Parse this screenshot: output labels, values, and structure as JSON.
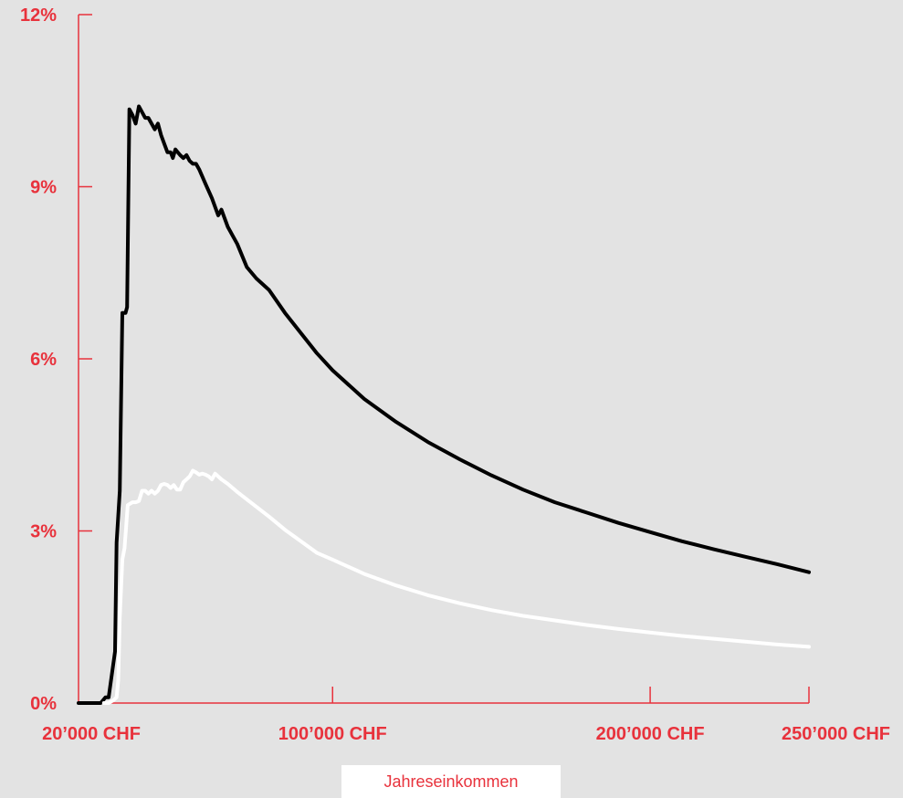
{
  "colors": {
    "background": "#e3e3e3",
    "axis": "#e8323c",
    "series1": "#000000",
    "series2": "#ffffff"
  },
  "chart_data": {
    "type": "line",
    "title": "",
    "xlabel": "Jahreseinkommen",
    "ylabel": "",
    "xlim": [
      20000,
      250000
    ],
    "ylim": [
      0,
      12
    ],
    "grid": false,
    "y_ticks": [
      {
        "value": 0,
        "label": "0%"
      },
      {
        "value": 3,
        "label": "3%"
      },
      {
        "value": 6,
        "label": "6%"
      },
      {
        "value": 9,
        "label": "9%"
      },
      {
        "value": 12,
        "label": "12%"
      }
    ],
    "x_ticks": [
      {
        "value": 20000,
        "label": "20’000 CHF"
      },
      {
        "value": 100000,
        "label": "100’000 CHF"
      },
      {
        "value": 200000,
        "label": "200’000 CHF"
      },
      {
        "value": 250000,
        "label": "250’000 CHF"
      }
    ],
    "series": [
      {
        "color": "#000000",
        "points": [
          [
            20000,
            0
          ],
          [
            27000,
            0
          ],
          [
            28500,
            0.1
          ],
          [
            29500,
            0.1
          ],
          [
            30500,
            0.5
          ],
          [
            31500,
            0.9
          ],
          [
            32000,
            2.8
          ],
          [
            33000,
            3.7
          ],
          [
            33800,
            6.8
          ],
          [
            34800,
            6.8
          ],
          [
            35300,
            6.9
          ],
          [
            36000,
            10.35
          ],
          [
            37000,
            10.25
          ],
          [
            38000,
            10.1
          ],
          [
            39000,
            10.4
          ],
          [
            40000,
            10.3
          ],
          [
            41000,
            10.2
          ],
          [
            42000,
            10.2
          ],
          [
            43000,
            10.1
          ],
          [
            44000,
            10.0
          ],
          [
            45000,
            10.1
          ],
          [
            46000,
            9.9
          ],
          [
            47000,
            9.75
          ],
          [
            48000,
            9.6
          ],
          [
            49000,
            9.6
          ],
          [
            49700,
            9.5
          ],
          [
            50500,
            9.65
          ],
          [
            52000,
            9.55
          ],
          [
            53000,
            9.5
          ],
          [
            54000,
            9.55
          ],
          [
            55000,
            9.45
          ],
          [
            56000,
            9.4
          ],
          [
            57000,
            9.4
          ],
          [
            58000,
            9.3
          ],
          [
            60000,
            9.05
          ],
          [
            62000,
            8.8
          ],
          [
            64000,
            8.5
          ],
          [
            65000,
            8.6
          ],
          [
            67000,
            8.3
          ],
          [
            70000,
            8.0
          ],
          [
            73000,
            7.6
          ],
          [
            76000,
            7.4
          ],
          [
            80000,
            7.2
          ],
          [
            85000,
            6.8
          ],
          [
            90000,
            6.45
          ],
          [
            95000,
            6.1
          ],
          [
            100000,
            5.8
          ],
          [
            110000,
            5.3
          ],
          [
            120000,
            4.9
          ],
          [
            130000,
            4.55
          ],
          [
            140000,
            4.25
          ],
          [
            150000,
            3.97
          ],
          [
            160000,
            3.72
          ],
          [
            170000,
            3.5
          ],
          [
            180000,
            3.32
          ],
          [
            190000,
            3.14
          ],
          [
            200000,
            2.98
          ],
          [
            210000,
            2.82
          ],
          [
            220000,
            2.68
          ],
          [
            230000,
            2.55
          ],
          [
            240000,
            2.42
          ],
          [
            250000,
            2.28
          ]
        ]
      },
      {
        "color": "#ffffff",
        "points": [
          [
            28000,
            0
          ],
          [
            29500,
            0
          ],
          [
            31000,
            0.05
          ],
          [
            32000,
            0.1
          ],
          [
            32500,
            0.4
          ],
          [
            33000,
            1.5
          ],
          [
            33800,
            2.5
          ],
          [
            34500,
            2.7
          ],
          [
            35500,
            3.45
          ],
          [
            37000,
            3.5
          ],
          [
            38000,
            3.5
          ],
          [
            39000,
            3.52
          ],
          [
            40000,
            3.7
          ],
          [
            41000,
            3.7
          ],
          [
            42000,
            3.65
          ],
          [
            43000,
            3.7
          ],
          [
            44000,
            3.65
          ],
          [
            45000,
            3.7
          ],
          [
            46000,
            3.8
          ],
          [
            47000,
            3.82
          ],
          [
            48000,
            3.8
          ],
          [
            49000,
            3.75
          ],
          [
            50000,
            3.8
          ],
          [
            51000,
            3.72
          ],
          [
            52000,
            3.72
          ],
          [
            53000,
            3.85
          ],
          [
            54000,
            3.9
          ],
          [
            55000,
            3.95
          ],
          [
            56000,
            4.05
          ],
          [
            57000,
            4.02
          ],
          [
            58000,
            3.98
          ],
          [
            59000,
            4.0
          ],
          [
            60000,
            3.98
          ],
          [
            61000,
            3.95
          ],
          [
            62000,
            3.9
          ],
          [
            63000,
            4.0
          ],
          [
            65000,
            3.9
          ],
          [
            67000,
            3.82
          ],
          [
            70000,
            3.68
          ],
          [
            73000,
            3.55
          ],
          [
            76000,
            3.42
          ],
          [
            80000,
            3.25
          ],
          [
            85000,
            3.02
          ],
          [
            90000,
            2.82
          ],
          [
            95000,
            2.62
          ],
          [
            100000,
            2.5
          ],
          [
            110000,
            2.25
          ],
          [
            120000,
            2.05
          ],
          [
            130000,
            1.88
          ],
          [
            140000,
            1.74
          ],
          [
            150000,
            1.62
          ],
          [
            160000,
            1.52
          ],
          [
            170000,
            1.44
          ],
          [
            180000,
            1.36
          ],
          [
            190000,
            1.29
          ],
          [
            200000,
            1.23
          ],
          [
            210000,
            1.17
          ],
          [
            220000,
            1.12
          ],
          [
            230000,
            1.07
          ],
          [
            240000,
            1.02
          ],
          [
            250000,
            0.98
          ]
        ]
      }
    ]
  }
}
